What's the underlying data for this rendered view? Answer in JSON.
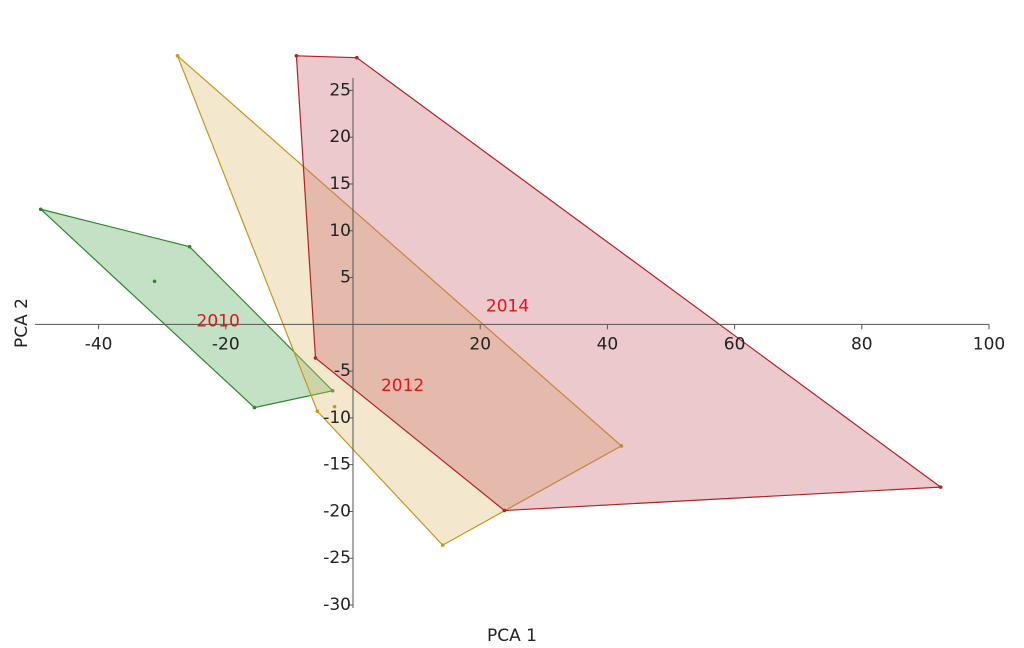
{
  "chart_data": {
    "type": "hull-scatter",
    "x_label": "PCA 1",
    "y_label": "PCA 2",
    "xlim": [
      -50,
      100
    ],
    "ylim": [
      -30,
      29
    ],
    "xticks": [
      -40,
      -20,
      20,
      40,
      60,
      80,
      100
    ],
    "yticks": [
      -30,
      -25,
      -20,
      -15,
      -10,
      -5,
      5,
      10,
      15,
      20,
      25
    ],
    "grid": false,
    "label_color": "#e8121a",
    "series": [
      {
        "name": "2010",
        "color": "#2a8a2a",
        "fill": "#5aaa5a",
        "x": [
          -49.1,
          -25.7,
          -3.2,
          -15.5
        ],
        "y": [
          12.3,
          8.3,
          -7.1,
          -8.9
        ],
        "inner_x": [
          -31.2
        ],
        "inner_y": [
          4.6
        ],
        "label_x": -21.2,
        "label_y": 0.3
      },
      {
        "name": "2012",
        "color": "#c8961e",
        "fill": "#dcbc72",
        "x": [
          -27.6,
          42.2,
          14.1,
          -5.6
        ],
        "y": [
          28.7,
          -13.0,
          -23.6,
          -9.3
        ],
        "inner_x": [
          -2.9
        ],
        "inner_y": [
          -8.8
        ],
        "label_x": 7.8,
        "label_y": -6.6
      },
      {
        "name": "2014",
        "color": "#b22222",
        "fill": "#c86470",
        "x": [
          -8.9,
          0.6,
          92.4,
          23.8,
          -5.9
        ],
        "y": [
          28.7,
          28.5,
          -17.4,
          -19.9,
          -3.6
        ],
        "inner_x": [],
        "inner_y": [],
        "label_x": 24.3,
        "label_y": 1.9
      }
    ]
  }
}
